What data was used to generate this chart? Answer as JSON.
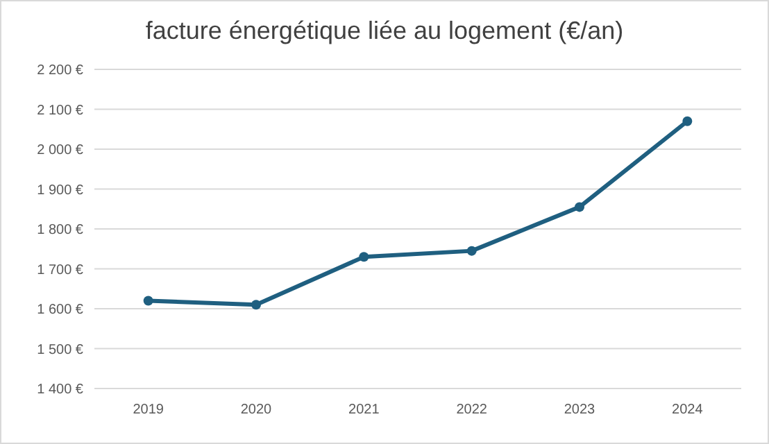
{
  "chart_data": {
    "type": "line",
    "title": "facture énergétique liée au logement (€/an)",
    "categories": [
      "2019",
      "2020",
      "2021",
      "2022",
      "2023",
      "2024"
    ],
    "series": [
      {
        "color": "#1f5f80",
        "values": [
          1620,
          1610,
          1730,
          1745,
          1855,
          2070
        ]
      }
    ],
    "ylim": [
      1400,
      2200
    ],
    "yticks": [
      {
        "value": 1400,
        "label": "1 400 €"
      },
      {
        "value": 1500,
        "label": "1 500 €"
      },
      {
        "value": 1600,
        "label": "1 600 €"
      },
      {
        "value": 1700,
        "label": "1 700 €"
      },
      {
        "value": 1800,
        "label": "1 800 €"
      },
      {
        "value": 1900,
        "label": "1 900 €"
      },
      {
        "value": 2000,
        "label": "2 000 €"
      },
      {
        "value": 2100,
        "label": "2 100 €"
      },
      {
        "value": 2200,
        "label": "2 200 €"
      }
    ],
    "grid": "y",
    "marker": "circle",
    "line_style": "solid"
  }
}
